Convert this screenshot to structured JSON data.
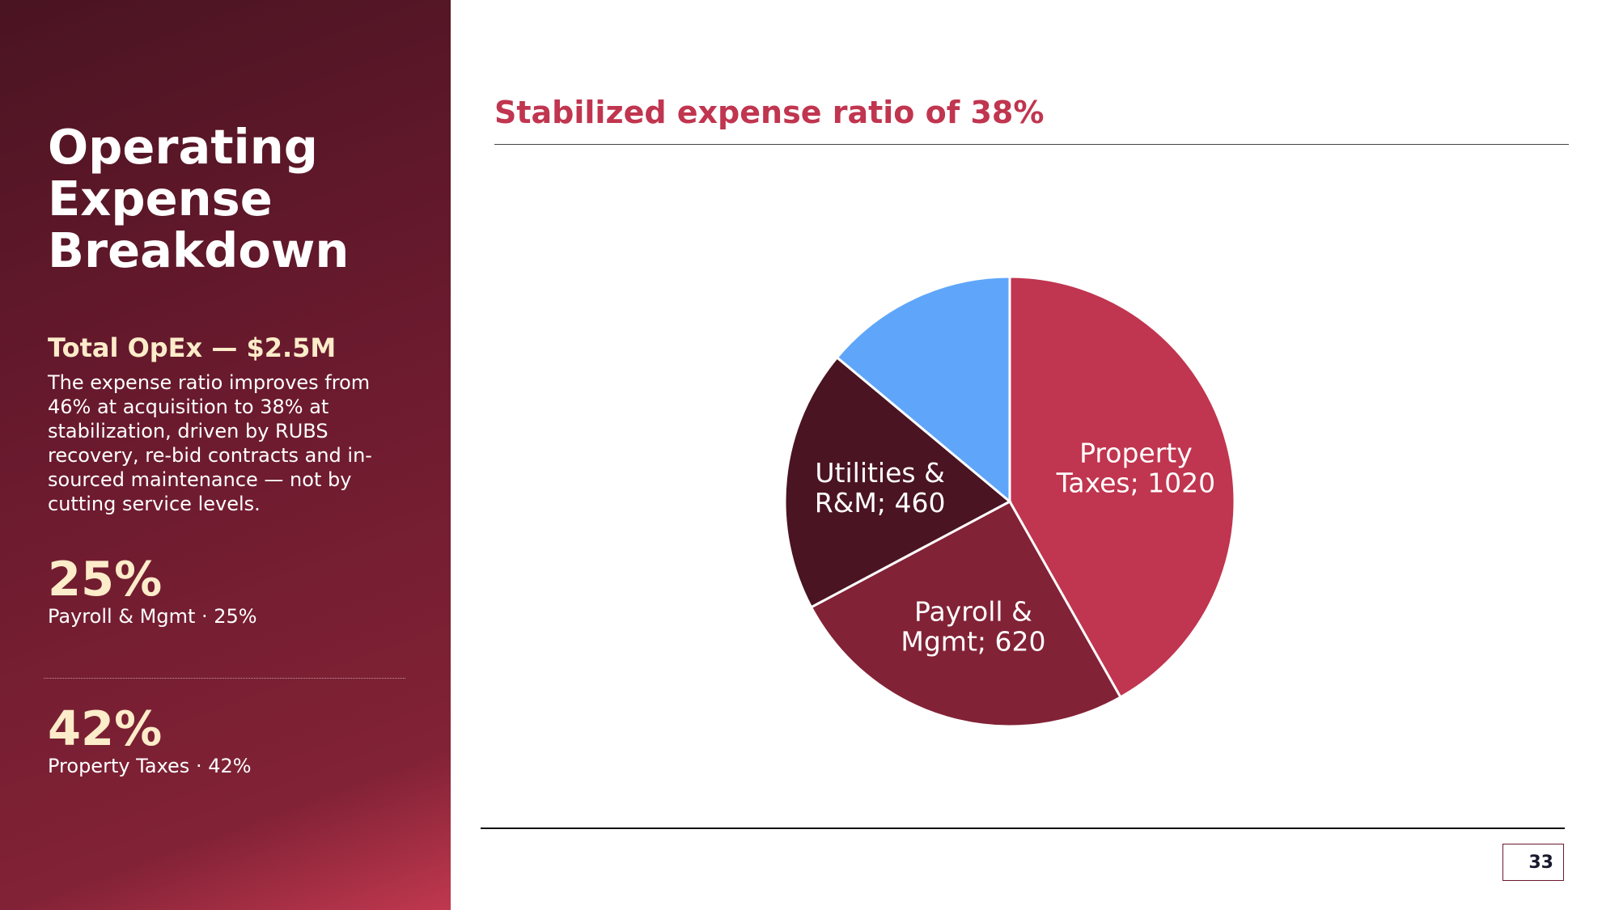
{
  "sidebar": {
    "title": "Operating\nExpense\nBreakdown",
    "total_heading": "Total OpEx — $2.5M",
    "description": "The expense ratio improves from 46% at acquisition to 38% at stabilization, driven by RUBS recovery, re-bid contracts and in-sourced maintenance — not by cutting service levels.",
    "stats": [
      {
        "value": "25%",
        "label": "Payroll & Mgmt · 25%"
      },
      {
        "value": "42%",
        "label": "Property Taxes · 42%"
      }
    ]
  },
  "main": {
    "title": "Stabilized expense ratio of 38%",
    "page_number": "33"
  },
  "colors": {
    "accent": "#c0354f",
    "sidebar_dark": "#4a1422",
    "highlight": "#fcecc9"
  },
  "chart_data": {
    "type": "pie",
    "title": "",
    "start_angle": "12 o'clock",
    "direction": "clockwise",
    "slices": [
      {
        "label": "Property Taxes",
        "value": 1020,
        "color": "#c0354f",
        "data_label": [
          "Property",
          "Taxes; 1020"
        ]
      },
      {
        "label": "Payroll & Mgmt",
        "value": 620,
        "color": "#822236",
        "data_label": [
          "Payroll &",
          "Mgmt; 620"
        ]
      },
      {
        "label": "Utilities & R&M",
        "value": 460,
        "color": "#4a1422",
        "data_label": [
          "Utilities &",
          "R&M; 460"
        ]
      },
      {
        "label": "",
        "value": 340,
        "color": "#5fa6fa",
        "data_label": []
      }
    ]
  }
}
